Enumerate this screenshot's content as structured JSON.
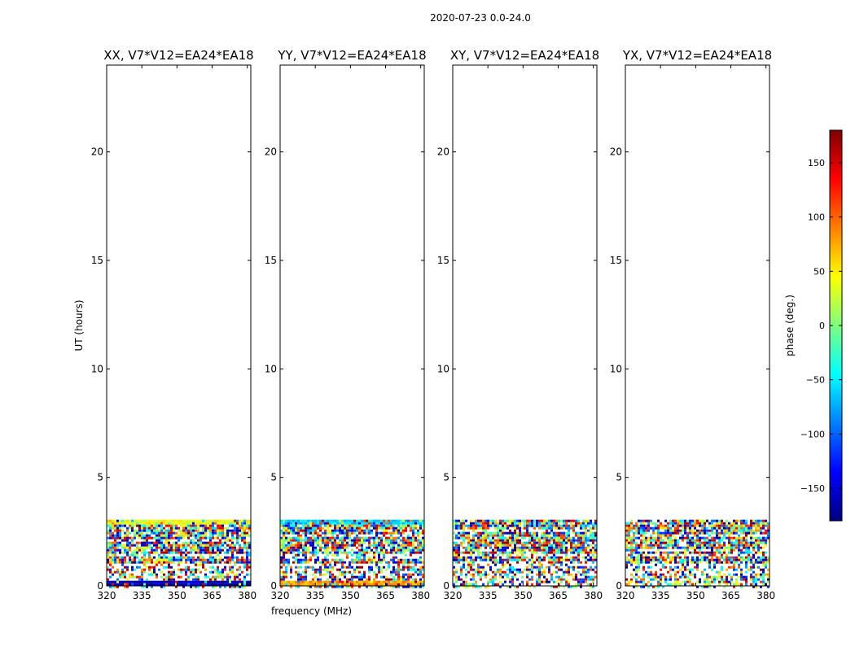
{
  "figure": {
    "title": "2020-07-23 0.0-24.0"
  },
  "chart_data": [
    {
      "type": "heatmap",
      "title": "XX, V7*V12=EA24*EA18",
      "xlabel": "",
      "ylabel": "UT (hours)",
      "xlim": [
        320,
        381.5
      ],
      "ylim": [
        0,
        24
      ],
      "xticks": [
        320,
        335,
        350,
        365,
        380
      ],
      "yticks": [
        0,
        5,
        10,
        15,
        20
      ],
      "data_ut_range": [
        0,
        3.05
      ],
      "gap_ut_range": [
        0.9,
        1.08
      ],
      "edge_rows": [
        {
          "ut": [
            2.88,
            3.05
          ],
          "phase": 40
        },
        {
          "ut": [
            0.0,
            0.22
          ],
          "phase": -160
        }
      ]
    },
    {
      "type": "heatmap",
      "title": "YY, V7*V12=EA24*EA18",
      "xlabel": "frequency (MHz)",
      "ylabel": "",
      "xlim": [
        320,
        381.5
      ],
      "ylim": [
        0,
        24
      ],
      "xticks": [
        320,
        335,
        350,
        365,
        380
      ],
      "yticks": [
        0,
        5,
        10,
        15,
        20
      ],
      "data_ut_range": [
        0,
        3.05
      ],
      "gap_ut_range": [
        0.9,
        1.08
      ],
      "edge_rows": [
        {
          "ut": [
            2.85,
            3.05
          ],
          "phase": -60
        },
        {
          "ut": [
            0.0,
            0.22
          ],
          "phase": 80
        }
      ]
    },
    {
      "type": "heatmap",
      "title": "XY, V7*V12=EA24*EA18",
      "xlabel": "",
      "ylabel": "",
      "xlim": [
        320,
        381.5
      ],
      "ylim": [
        0,
        24
      ],
      "xticks": [
        320,
        335,
        350,
        365,
        380
      ],
      "yticks": [
        0,
        5,
        10,
        15,
        20
      ],
      "data_ut_range": [
        0,
        3.05
      ],
      "gap_ut_range": [
        0.9,
        1.08
      ],
      "edge_rows": []
    },
    {
      "type": "heatmap",
      "title": "YX, V7*V12=EA24*EA18",
      "xlabel": "",
      "ylabel": "",
      "xlim": [
        320,
        381.5
      ],
      "ylim": [
        0,
        24
      ],
      "xticks": [
        320,
        335,
        350,
        365,
        380
      ],
      "yticks": [
        0,
        5,
        10,
        15,
        20
      ],
      "data_ut_range": [
        0,
        3.05
      ],
      "gap_ut_range": [
        0.9,
        1.08
      ],
      "edge_rows": []
    }
  ],
  "colorbar": {
    "label": "phase (deg.)",
    "range": [
      -180,
      180
    ],
    "ticks": [
      150,
      100,
      50,
      0,
      -50,
      -100,
      -150
    ],
    "tick_labels": [
      "150",
      "100",
      "50",
      "0",
      "−50",
      "−100",
      "−150"
    ],
    "colormap": "jet",
    "colors": [
      "#00007f",
      "#0000ff",
      "#007fff",
      "#00ffff",
      "#7fff7f",
      "#ffff00",
      "#ff7f00",
      "#ff0000",
      "#7f0000"
    ]
  }
}
